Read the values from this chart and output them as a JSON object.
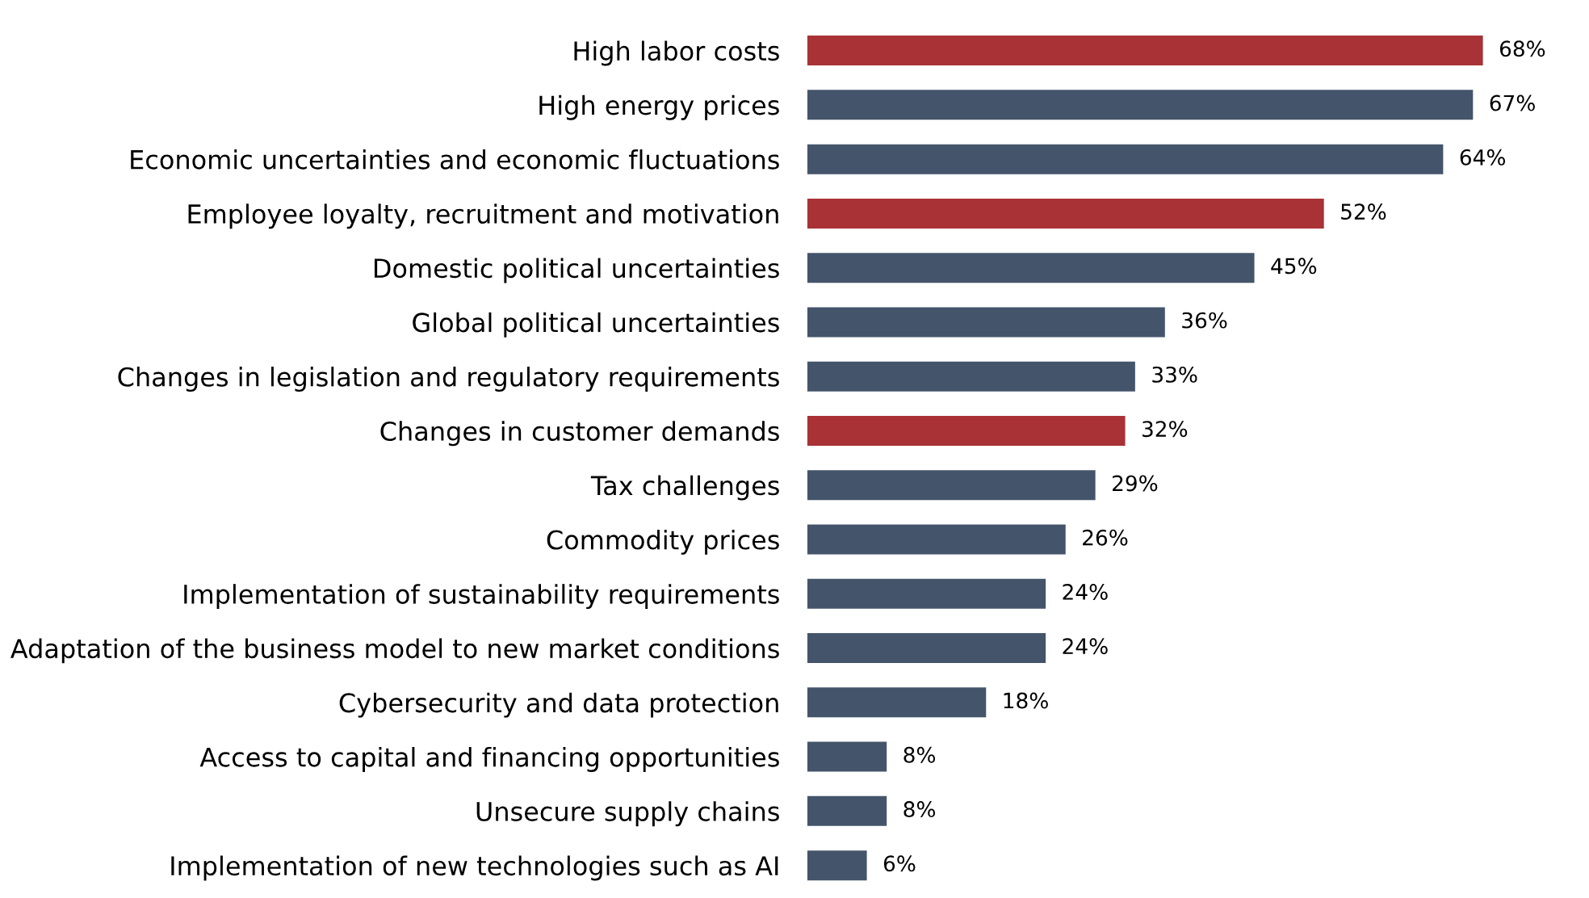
{
  "chart_data": {
    "type": "bar",
    "orientation": "horizontal",
    "categories": [
      "High labor costs",
      "High energy prices",
      "Economic uncertainties and economic fluctuations",
      "Employee loyalty, recruitment and motivation",
      "Domestic political uncertainties",
      "Global political uncertainties",
      "Changes in legislation and regulatory requirements",
      "Changes in customer demands",
      "Tax challenges",
      "Commodity prices",
      "Implementation of sustainability requirements",
      "Adaptation of the business model to new market conditions",
      "Cybersecurity and data protection",
      "Access to capital and financing opportunities",
      "Unsecure supply chains",
      "Implementation of new technologies such as AI"
    ],
    "values": [
      68,
      67,
      64,
      52,
      45,
      36,
      33,
      32,
      29,
      26,
      24,
      24,
      18,
      8,
      8,
      6
    ],
    "colors": [
      "#a83236",
      "#44546a",
      "#44546a",
      "#a83236",
      "#44546a",
      "#44546a",
      "#44546a",
      "#a83236",
      "#44546a",
      "#44546a",
      "#44546a",
      "#44546a",
      "#44546a",
      "#44546a",
      "#44546a",
      "#44546a"
    ],
    "value_labels": [
      "68%",
      "67%",
      "64%",
      "52%",
      "45%",
      "36%",
      "33%",
      "32%",
      "29%",
      "26%",
      "24%",
      "24%",
      "18%",
      "8%",
      "8%",
      "6%"
    ],
    "legend": false
  }
}
